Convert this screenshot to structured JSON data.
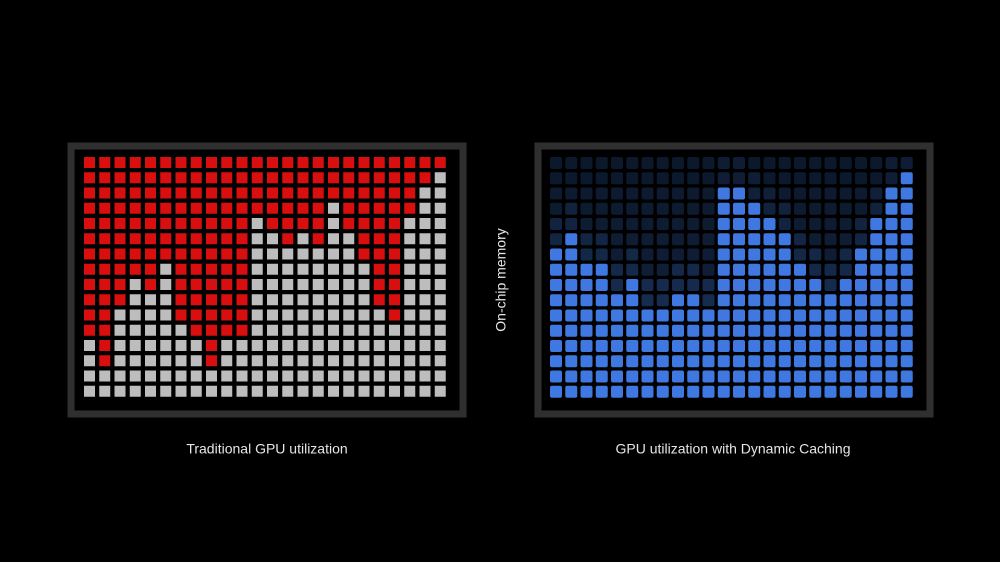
{
  "panels": [
    {
      "caption": "Traditional GPU utilization",
      "rows": 16,
      "filled_from_top": [
        12,
        14,
        10,
        8,
        9,
        7,
        11,
        12,
        14,
        12,
        12,
        4,
        5,
        6,
        5,
        6,
        3,
        5,
        7,
        10,
        11,
        4,
        2,
        1
      ]
    },
    {
      "caption": "GPU utilization with Dynamic Caching",
      "rows": 16,
      "filled_from_bottom": [
        10,
        11,
        9,
        9,
        7,
        8,
        6,
        6,
        7,
        7,
        6,
        14,
        14,
        13,
        12,
        11,
        9,
        8,
        7,
        8,
        10,
        12,
        14,
        15
      ]
    }
  ],
  "memory_label": "On-chip memory"
}
